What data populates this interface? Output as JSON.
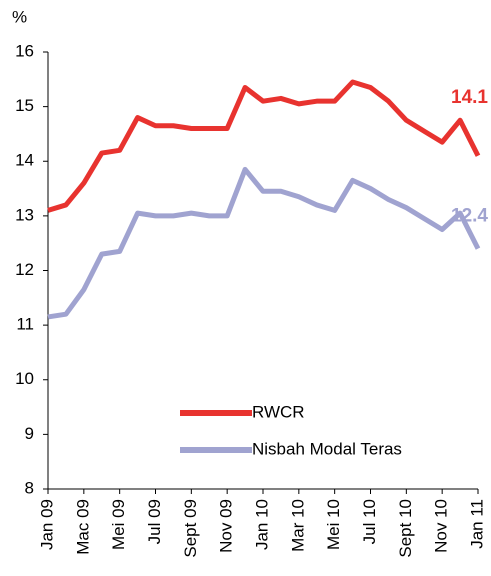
{
  "chart_data": {
    "type": "line",
    "y_label": "%",
    "categories": [
      "Jan 09",
      null,
      "Mac 09",
      null,
      "Mei 09",
      null,
      "Jul 09",
      null,
      "Sept 09",
      null,
      "Nov 09",
      null,
      "Jan 10",
      null,
      "Mar 10",
      null,
      "Mei 10",
      null,
      "Jul 10",
      null,
      "Sept 10",
      null,
      "Nov 10",
      null,
      "Jan 11"
    ],
    "series": [
      {
        "name": "RWCR",
        "color": "#e8332f",
        "values": [
          13.1,
          13.2,
          13.6,
          14.15,
          14.2,
          14.8,
          14.65,
          14.65,
          14.6,
          14.6,
          14.6,
          15.35,
          15.1,
          15.15,
          15.05,
          15.1,
          15.1,
          15.45,
          15.35,
          15.1,
          14.75,
          14.55,
          14.35,
          14.75,
          14.1
        ]
      },
      {
        "name": "Nisbah Modal Teras",
        "color": "#a0a3d0",
        "values": [
          11.15,
          11.2,
          11.65,
          12.3,
          12.35,
          13.05,
          13.0,
          13.0,
          13.05,
          13.0,
          13.0,
          13.85,
          13.45,
          13.45,
          13.35,
          13.2,
          13.1,
          13.65,
          13.5,
          13.3,
          13.15,
          12.95,
          12.75,
          13.05,
          12.4
        ]
      }
    ],
    "ylim": [
      8,
      16
    ],
    "yticks": [
      8,
      9,
      10,
      11,
      12,
      13,
      14,
      15,
      16
    ],
    "grid": false,
    "legend": "bottom"
  }
}
